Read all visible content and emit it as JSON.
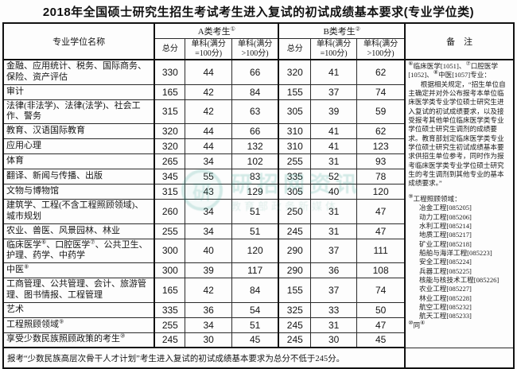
{
  "title": "2018年全国硕士研究生招生考试考生进入复试的初试成绩基本要求(专业学位类)",
  "table": {
    "header": {
      "major": "专业学位名称",
      "group_a": "A类考生①",
      "group_b": "B类考生②",
      "remark": "备　注"
    },
    "sub_headers": [
      "总分",
      "单科(满分=100分)",
      "单科(满分>100分)"
    ],
    "rows": [
      {
        "label": "金融、应用统计、税务、国际商务、保险、资产评估",
        "a": [
          330,
          44,
          66
        ],
        "b": [
          320,
          41,
          62
        ]
      },
      {
        "label": "审计",
        "a": [
          165,
          42,
          84
        ],
        "b": [
          155,
          37,
          74
        ]
      },
      {
        "label": "法律(非法学)、法律(法学)、社会工作、警务",
        "a": [
          315,
          42,
          63
        ],
        "b": [
          305,
          39,
          59
        ]
      },
      {
        "label": "教育、汉语国际教育",
        "a": [
          320,
          44,
          66
        ],
        "b": [
          310,
          41,
          62
        ]
      },
      {
        "label": "应用心理",
        "a": [
          320,
          44,
          132
        ],
        "b": [
          310,
          41,
          123
        ]
      },
      {
        "label": "体育",
        "a": [
          265,
          34,
          102
        ],
        "b": [
          255,
          31,
          93
        ]
      },
      {
        "label": "翻译、新闻与传播、出版",
        "a": [
          345,
          55,
          83
        ],
        "b": [
          335,
          52,
          78
        ]
      },
      {
        "label": "文物与博物馆",
        "a": [
          315,
          43,
          129
        ],
        "b": [
          305,
          40,
          120
        ]
      },
      {
        "label": "建筑学、工程(不含工程照顾领域)、城市规划",
        "a": [
          260,
          34,
          51
        ],
        "b": [
          250,
          31,
          47
        ]
      },
      {
        "label": "农业、兽医、风景园林、林业",
        "a": [
          255,
          34,
          51
        ],
        "b": [
          245,
          31,
          47
        ]
      },
      {
        "label": "临床医学⑥、口腔医学⑦、公共卫生、护理、药学、中药学",
        "a": [
          300,
          40,
          120
        ],
        "b": [
          290,
          37,
          111
        ]
      },
      {
        "label": "中医⑧",
        "a": [
          300,
          39,
          117
        ],
        "b": [
          290,
          36,
          108
        ]
      },
      {
        "label": "工商管理、公共管理、会计、旅游管理、图书情报、工程管理",
        "a": [
          165,
          42,
          84
        ],
        "b": [
          155,
          37,
          74
        ]
      },
      {
        "label": "艺术",
        "a": [
          335,
          36,
          54
        ],
        "b": [
          325,
          33,
          50
        ]
      },
      {
        "label": "工程照顾领域⑨",
        "a": [
          255,
          34,
          51
        ],
        "b": [
          245,
          31,
          47
        ]
      },
      {
        "label": "享受少数民族照顾政策的考生⑩",
        "a": [
          245,
          30,
          45
        ],
        "b": [
          245,
          30,
          45
        ]
      }
    ],
    "footer": "报考“少数民族高层次骨干人才计划”考生进入复试的初试成绩基本要求为总分不低于245分。"
  },
  "remark": {
    "clinical_title": "⑥临床医学[1051]、⑦口腔医学[1052]、⑧中医[1057]专业：",
    "clinical_body": "根据相关规定，“招生单位自主确定并对外公布报考本单位临床医学类专业学位硕士研究生进入复试的初试成绩要求，以及接受报考其他单位临床医学类专业学位硕士研究生调剂的成绩要求。教育部划定临床医学类专业学位硕士研究生初试成绩基本要求供招生单位参考，同时作为报考临床医学类专业学位硕士研究生的考生调剂到其他专业的基本成绩要求。”",
    "engineering_title": "⑨工程照顾领域：",
    "engineering_items": [
      "冶金工程[085205]",
      "动力工程[085206]",
      "水利工程[085214]",
      "地质工程[085217]",
      "矿业工程[085218]",
      "船舶与海洋工程[085223]",
      "安全工程[085224]",
      "兵器工程[085225]",
      "核能与核技术工程[085226]",
      "农业工程[085227]",
      "林业工程[085228]",
      "航空工程[085232]",
      "航天工程[085233]"
    ],
    "minority_note": "⑩同④"
  },
  "watermark": {
    "logo": "研",
    "line1": "研招网资讯",
    "line2": "教育部政务新媒体",
    "color": "#2e9e8e"
  }
}
